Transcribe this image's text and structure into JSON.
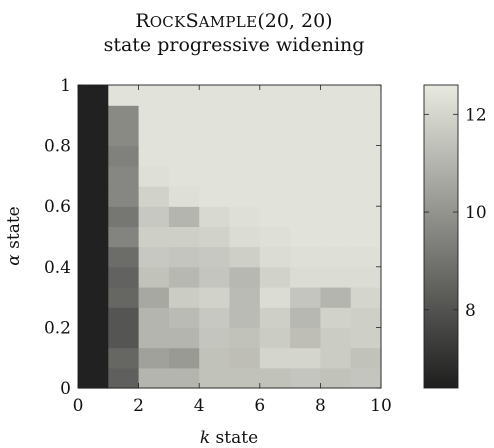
{
  "chart_data": {
    "type": "heatmap",
    "title_prefix_big": "R",
    "title_prefix_small": "OCK",
    "title_mid_big": "S",
    "title_mid_small": "AMPLE",
    "title_args": "(20, 20)",
    "subtitle": "state progressive widening",
    "xlabel_symbol": "k",
    "xlabel_text": " state",
    "ylabel_symbol": "α",
    "ylabel_text": " state",
    "xlim": [
      0,
      10
    ],
    "ylim": [
      0,
      1
    ],
    "xticks": [
      0,
      2,
      4,
      6,
      8,
      10
    ],
    "yticks": [
      0,
      0.2,
      0.4,
      0.6,
      0.8,
      1
    ],
    "ytick_labels": [
      "0",
      "0.2",
      "0.4",
      "0.6",
      "0.8",
      "1"
    ],
    "colorbar_ticks": [
      8,
      10,
      12
    ],
    "colorbar_range": [
      6.4,
      12.6
    ],
    "colormap_colors": [
      "#1e1e1e",
      "#e8e9e0"
    ],
    "k_bins": 10,
    "alpha_bins": 15,
    "values_bottom_to_top": [
      [
        6.5,
        8.4,
        11.0,
        11.0,
        11.4,
        11.4,
        11.4,
        11.5,
        11.4,
        11.5
      ],
      [
        6.5,
        8.6,
        10.4,
        10.2,
        11.4,
        11.3,
        12.0,
        12.0,
        11.7,
        11.4
      ],
      [
        6.5,
        8.1,
        11.0,
        11.0,
        11.5,
        11.4,
        11.7,
        11.3,
        11.7,
        11.8
      ],
      [
        6.5,
        8.1,
        11.0,
        11.2,
        11.6,
        11.2,
        11.8,
        11.1,
        11.9,
        11.8
      ],
      [
        6.5,
        8.6,
        10.6,
        11.7,
        11.9,
        11.2,
        12.2,
        11.5,
        11.0,
        12.0
      ],
      [
        6.5,
        8.5,
        11.4,
        11.1,
        11.5,
        11.1,
        11.9,
        12.2,
        12.2,
        12.2
      ],
      [
        6.5,
        8.8,
        11.6,
        11.5,
        11.6,
        11.8,
        12.2,
        12.3,
        12.3,
        12.3
      ],
      [
        6.5,
        9.5,
        11.8,
        11.8,
        11.9,
        12.2,
        12.3,
        12.4,
        12.4,
        12.4
      ],
      [
        6.5,
        9.1,
        11.6,
        11.0,
        12.1,
        12.3,
        12.4,
        12.4,
        12.4,
        12.4
      ],
      [
        6.5,
        9.6,
        11.9,
        12.3,
        12.4,
        12.4,
        12.4,
        12.4,
        12.4,
        12.4
      ],
      [
        6.5,
        9.6,
        12.3,
        12.4,
        12.4,
        12.4,
        12.4,
        12.4,
        12.4,
        12.4
      ],
      [
        6.5,
        9.4,
        12.4,
        12.4,
        12.4,
        12.4,
        12.4,
        12.4,
        12.4,
        12.4
      ],
      [
        6.5,
        9.7,
        12.4,
        12.4,
        12.4,
        12.4,
        12.4,
        12.4,
        12.4,
        12.4
      ],
      [
        6.5,
        9.7,
        12.4,
        12.4,
        12.4,
        12.4,
        12.4,
        12.4,
        12.4,
        12.4
      ],
      [
        6.5,
        12.4,
        12.4,
        12.4,
        12.4,
        12.4,
        12.4,
        12.4,
        12.4,
        12.4
      ]
    ]
  }
}
